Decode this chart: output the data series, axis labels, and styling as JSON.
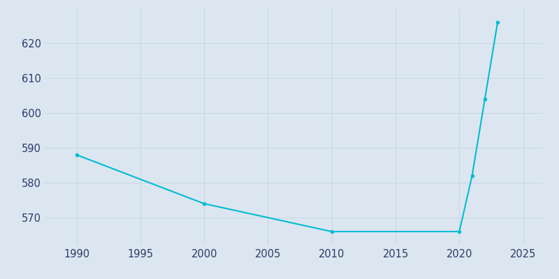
{
  "years": [
    1990,
    2000,
    2010,
    2020,
    2021,
    2022,
    2023
  ],
  "population": [
    588,
    574,
    566,
    566,
    582,
    604,
    626
  ],
  "line_color": "#00bcd4",
  "bg_color": "#dce6f0",
  "plot_bg_color": "#dce6f0",
  "grid_color": "#c8d8e8",
  "tick_color": "#2d3a6b",
  "xlim": [
    1987.5,
    2026.5
  ],
  "ylim": [
    562,
    630
  ],
  "yticks": [
    570,
    580,
    590,
    600,
    610,
    620
  ],
  "xticks": [
    1990,
    1995,
    2000,
    2005,
    2010,
    2015,
    2020,
    2025
  ],
  "figsize": [
    8.0,
    4.0
  ],
  "dpi": 100
}
